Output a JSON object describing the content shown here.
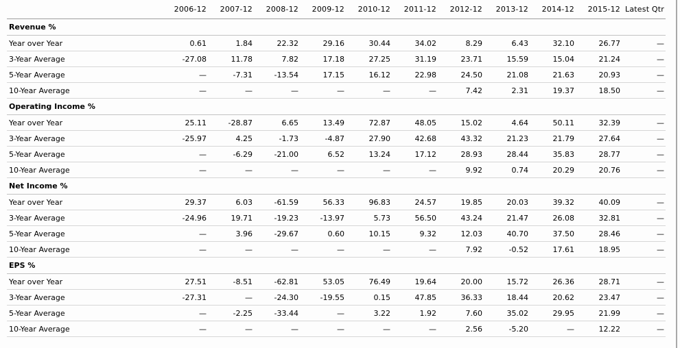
{
  "table": {
    "corner_label": "",
    "columns": [
      "2006-12",
      "2007-12",
      "2008-12",
      "2009-12",
      "2010-12",
      "2011-12",
      "2012-12",
      "2013-12",
      "2014-12",
      "2015-12",
      "Latest Qtr"
    ],
    "sections": [
      {
        "title": "Revenue %",
        "rows": [
          {
            "label": "Year over Year",
            "values": [
              "0.61",
              "1.84",
              "22.32",
              "29.16",
              "30.44",
              "34.02",
              "8.29",
              "6.43",
              "32.10",
              "26.77",
              "—"
            ]
          },
          {
            "label": "3-Year Average",
            "values": [
              "-27.08",
              "11.78",
              "7.82",
              "17.18",
              "27.25",
              "31.19",
              "23.71",
              "15.59",
              "15.04",
              "21.24",
              "—"
            ]
          },
          {
            "label": "5-Year Average",
            "values": [
              "—",
              "-7.31",
              "-13.54",
              "17.15",
              "16.12",
              "22.98",
              "24.50",
              "21.08",
              "21.63",
              "20.93",
              "—"
            ]
          },
          {
            "label": "10-Year Average",
            "values": [
              "—",
              "—",
              "—",
              "—",
              "—",
              "—",
              "7.42",
              "2.31",
              "19.37",
              "18.50",
              "—"
            ]
          }
        ]
      },
      {
        "title": "Operating Income %",
        "rows": [
          {
            "label": "Year over Year",
            "values": [
              "25.11",
              "-28.87",
              "6.65",
              "13.49",
              "72.87",
              "48.05",
              "15.02",
              "4.64",
              "50.11",
              "32.39",
              "—"
            ]
          },
          {
            "label": "3-Year Average",
            "values": [
              "-25.97",
              "4.25",
              "-1.73",
              "-4.87",
              "27.90",
              "42.68",
              "43.32",
              "21.23",
              "21.79",
              "27.64",
              "—"
            ]
          },
          {
            "label": "5-Year Average",
            "values": [
              "—",
              "-6.29",
              "-21.00",
              "6.52",
              "13.24",
              "17.12",
              "28.93",
              "28.44",
              "35.83",
              "28.77",
              "—"
            ]
          },
          {
            "label": "10-Year Average",
            "values": [
              "—",
              "—",
              "—",
              "—",
              "—",
              "—",
              "9.92",
              "0.74",
              "20.29",
              "20.76",
              "—"
            ]
          }
        ]
      },
      {
        "title": "Net Income %",
        "rows": [
          {
            "label": "Year over Year",
            "values": [
              "29.37",
              "6.03",
              "-61.59",
              "56.33",
              "96.83",
              "24.57",
              "19.85",
              "20.03",
              "39.32",
              "40.09",
              "—"
            ]
          },
          {
            "label": "3-Year Average",
            "values": [
              "-24.96",
              "19.71",
              "-19.23",
              "-13.97",
              "5.73",
              "56.50",
              "43.24",
              "21.47",
              "26.08",
              "32.81",
              "—"
            ]
          },
          {
            "label": "5-Year Average",
            "values": [
              "—",
              "3.96",
              "-29.67",
              "0.60",
              "10.15",
              "9.32",
              "12.03",
              "40.70",
              "37.50",
              "28.46",
              "—"
            ]
          },
          {
            "label": "10-Year Average",
            "values": [
              "—",
              "—",
              "—",
              "—",
              "—",
              "—",
              "7.92",
              "-0.52",
              "17.61",
              "18.95",
              "—"
            ]
          }
        ]
      },
      {
        "title": "EPS %",
        "rows": [
          {
            "label": "Year over Year",
            "values": [
              "27.51",
              "-8.51",
              "-62.81",
              "53.05",
              "76.49",
              "19.64",
              "20.00",
              "15.72",
              "26.36",
              "28.71",
              "—"
            ]
          },
          {
            "label": "3-Year Average",
            "values": [
              "-27.31",
              "—",
              "-24.30",
              "-19.55",
              "0.15",
              "47.85",
              "36.33",
              "18.44",
              "20.62",
              "23.47",
              "—"
            ]
          },
          {
            "label": "5-Year Average",
            "values": [
              "—",
              "-2.25",
              "-33.44",
              "—",
              "3.22",
              "1.92",
              "7.60",
              "35.02",
              "29.95",
              "21.99",
              "—"
            ]
          },
          {
            "label": "10-Year Average",
            "values": [
              "—",
              "—",
              "—",
              "—",
              "—",
              "—",
              "2.56",
              "-5.20",
              "—",
              "12.22",
              "—"
            ]
          }
        ]
      }
    ]
  },
  "colors": {
    "page_background": "#fdfdfd",
    "text": "#000000",
    "header_rule": "#9e9e9e",
    "section_rule": "#c2c2c2",
    "row_rule": "#d6d6d6",
    "page_right_edge": "#a8a8a8"
  }
}
